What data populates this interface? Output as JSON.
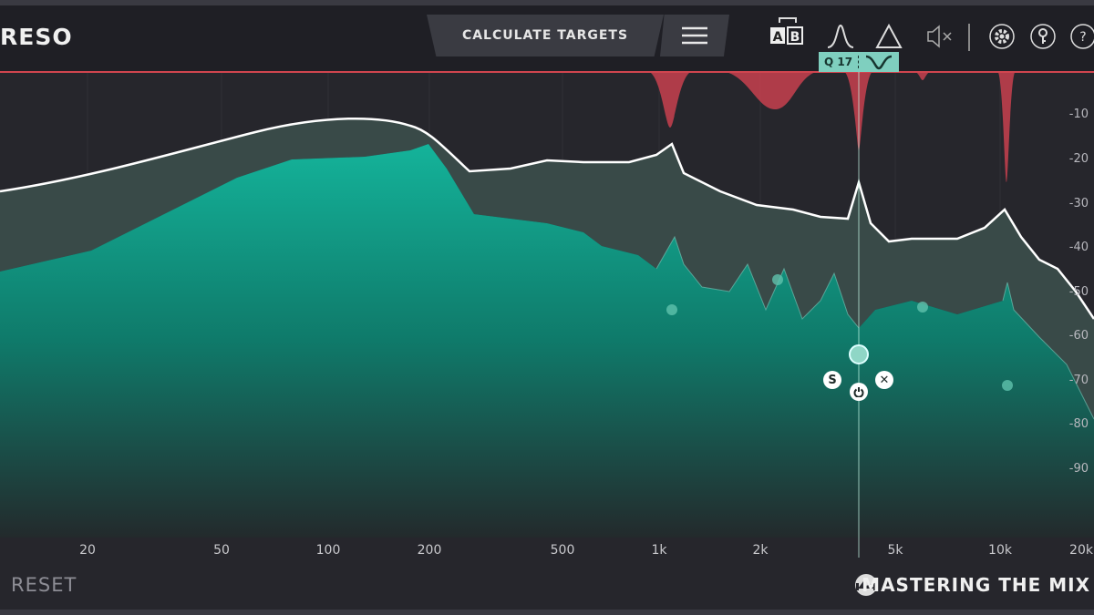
{
  "app": {
    "title": "RESO"
  },
  "toolbar": {
    "calculate_label": "CALCULATE TARGETS",
    "menu_icon": "hamburger-icon",
    "icons": [
      "ab-compare-icon",
      "bell-curve-icon",
      "triangle-icon",
      "mute-icon",
      "settings-icon",
      "key-icon",
      "help-icon"
    ],
    "ab_a": "A",
    "ab_b": "B",
    "help": "?"
  },
  "node": {
    "q_label": "Q 17",
    "solo": "S",
    "remove": "✕"
  },
  "db_axis": [
    "-10",
    "-20",
    "-30",
    "-40",
    "-50",
    "-60",
    "-70",
    "-80",
    "-90"
  ],
  "freq_axis": [
    "20",
    "50",
    "100",
    "200",
    "500",
    "1k",
    "2k",
    "5k",
    "10k",
    "20k"
  ],
  "footer": {
    "reset_label": "RESET",
    "brand": "MASTERING THE MIX"
  },
  "colors": {
    "accent": "#7fcfbf",
    "cut": "#c8414f",
    "curve": "#ffffff"
  }
}
